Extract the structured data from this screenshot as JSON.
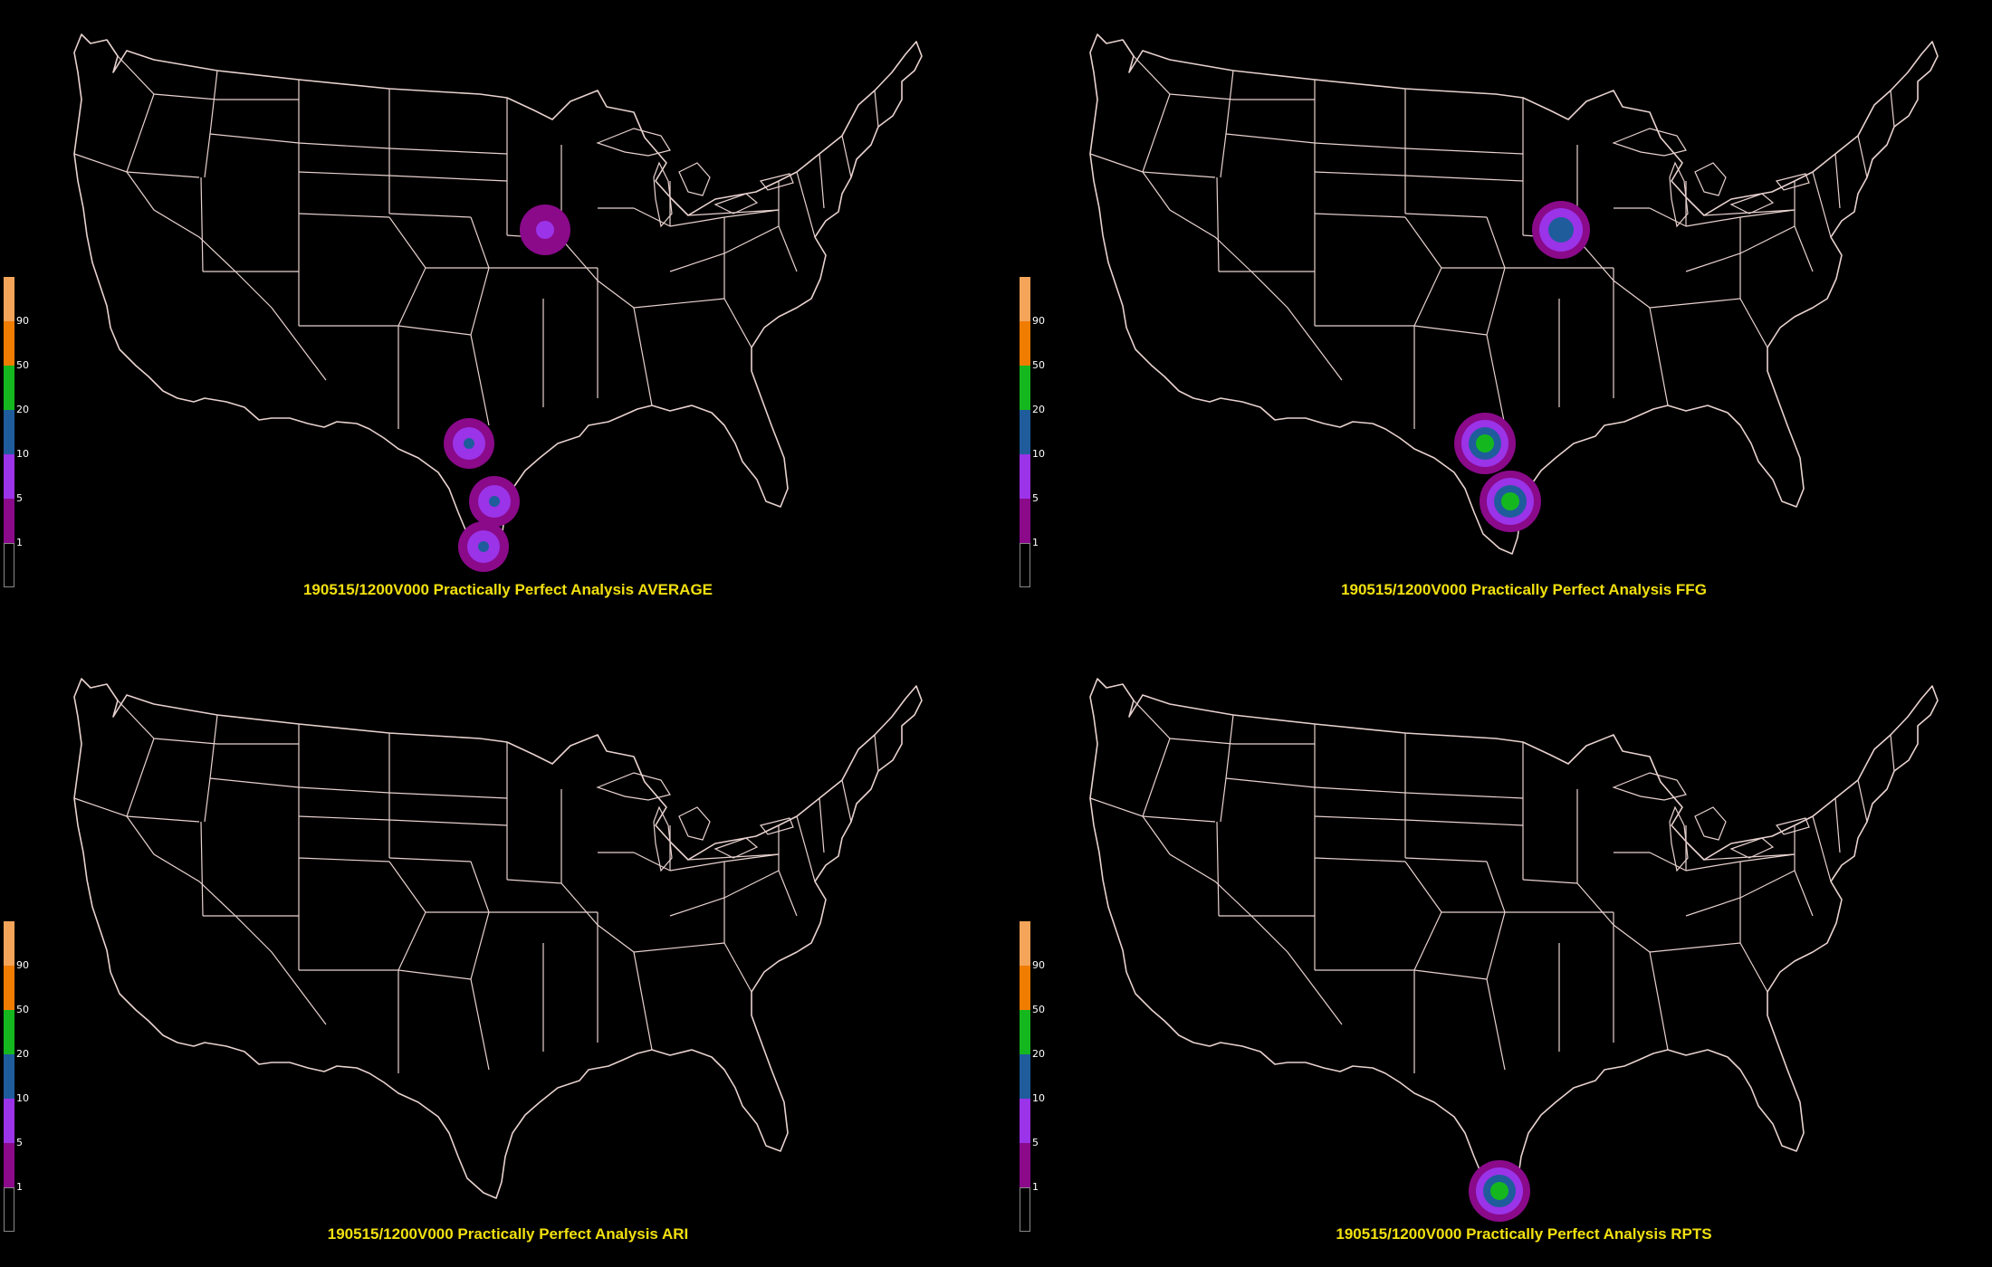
{
  "colors": {
    "background": "#000000",
    "outline": "#e8d2cf",
    "title": "#f2e010"
  },
  "legend": {
    "labels": [
      "1",
      "5",
      "10",
      "20",
      "50",
      "90"
    ],
    "colors": [
      "#000000",
      "#8a0a8a",
      "#9b33e8",
      "#1f5c9c",
      "#14b81e",
      "#f07c00",
      "#f5a55a"
    ]
  },
  "panels": [
    {
      "title": "190515/1200V000 Practically Perfect Analysis AVERAGE",
      "blobs": [
        {
          "region": "Iowa",
          "level": "1-5"
        },
        {
          "region": "West Texas",
          "level": "5-10"
        },
        {
          "region": "South Texas",
          "level": "5-10"
        },
        {
          "region": "Lower Rio Grande",
          "level": "5-10"
        }
      ]
    },
    {
      "title": "190515/1200V000 Practically Perfect Analysis FFG",
      "blobs": [
        {
          "region": "Iowa",
          "level": "10-20"
        },
        {
          "region": "West Texas",
          "level": "20-50"
        },
        {
          "region": "South Texas",
          "level": "20-50"
        }
      ]
    },
    {
      "title": "190515/1200V000 Practically Perfect Analysis ARI",
      "blobs": []
    },
    {
      "title": "190515/1200V000 Practically Perfect Analysis RPTS",
      "blobs": [
        {
          "region": "Lower Rio Grande",
          "level": "20-50"
        }
      ]
    }
  ]
}
